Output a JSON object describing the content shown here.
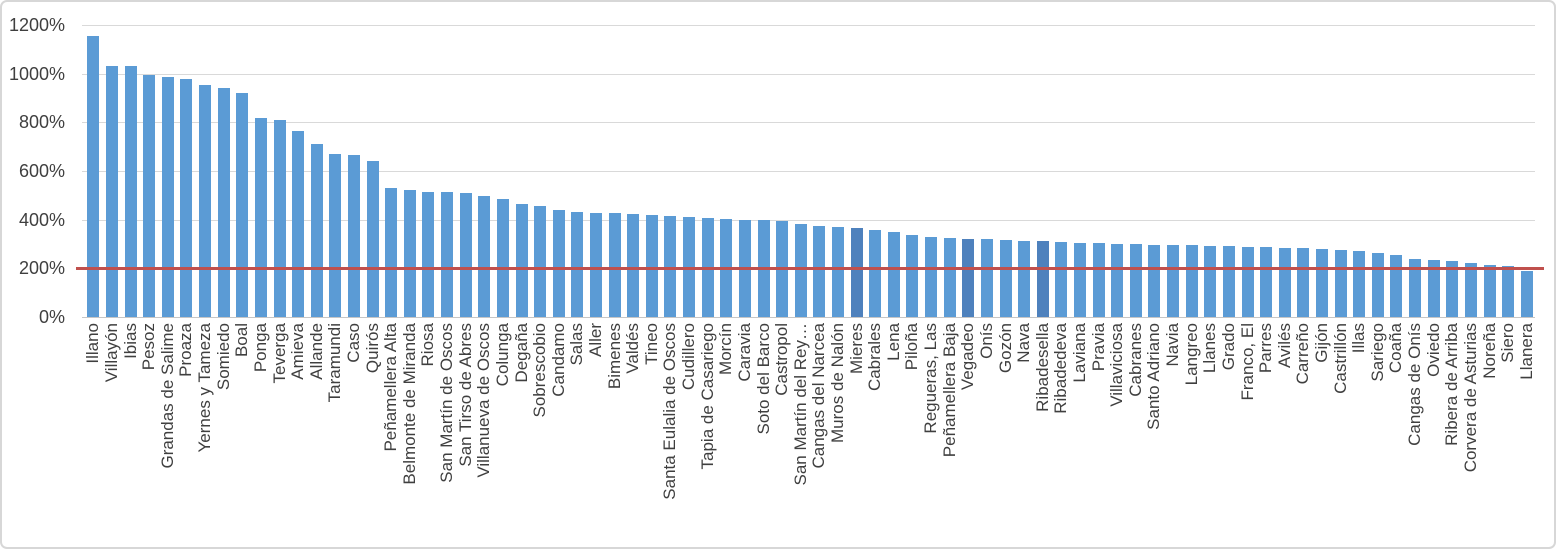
{
  "chart_data": {
    "type": "bar",
    "title": "",
    "xlabel": "",
    "ylabel": "",
    "ylim": [
      0,
      1200
    ],
    "grid": true,
    "legend": false,
    "y_tick_values": [
      0,
      200,
      400,
      600,
      800,
      1000,
      1200
    ],
    "y_tick_labels": [
      "0%",
      "200%",
      "400%",
      "600%",
      "800%",
      "1000%",
      "1200%"
    ],
    "categories": [
      "Illano",
      "Villayón",
      "Ibias",
      "Pesoz",
      "Grandas de Salime",
      "Proaza",
      "Yernes y Tameza",
      "Somiedo",
      "Boal",
      "Ponga",
      "Teverga",
      "Amieva",
      "Allande",
      "Taramundi",
      "Caso",
      "Quirós",
      "Peñamellera Alta",
      "Belmonte de Miranda",
      "Riosa",
      "San Martín de Oscos",
      "San Tirso de Abres",
      "Villanueva de Oscos",
      "Colunga",
      "Degaña",
      "Sobrescobio",
      "Candamo",
      "Salas",
      "Aller",
      "Bimenes",
      "Valdés",
      "Tineo",
      "Santa Eulalia de Oscos",
      "Cudillero",
      "Tapia de Casariego",
      "Morcín",
      "Caravia",
      "Soto del Barco",
      "Castropol",
      "San Martín del Rey…",
      "Cangas del Narcea",
      "Muros de Nalón",
      "Mieres",
      "Cabrales",
      "Lena",
      "Piloña",
      "Regueras, Las",
      "Peñamellera Baja",
      "Vegadeo",
      "Onís",
      "Gozón",
      "Nava",
      "Ribadesella",
      "Ribadedeva",
      "Laviana",
      "Pravia",
      "Villaviciosa",
      "Cabranes",
      "Santo Adriano",
      "Navia",
      "Langreo",
      "Llanes",
      "Grado",
      "Franco, El",
      "Parres",
      "Avilés",
      "Carreño",
      "Gijón",
      "Castrillón",
      "Illas",
      "Sariego",
      "Coaña",
      "Cangas de Onís",
      "Oviedo",
      "Ribera de Arriba",
      "Corvera de Asturias",
      "Noreña",
      "Siero",
      "Llanera"
    ],
    "values": [
      1155,
      1030,
      1030,
      995,
      985,
      980,
      955,
      940,
      920,
      820,
      810,
      765,
      710,
      670,
      665,
      640,
      530,
      522,
      515,
      512,
      510,
      497,
      485,
      465,
      456,
      440,
      432,
      428,
      427,
      423,
      419,
      415,
      411,
      407,
      403,
      400,
      399,
      395,
      383,
      374,
      370,
      366,
      357,
      349,
      337,
      329,
      324,
      321,
      319,
      316,
      312,
      311,
      308,
      305,
      304,
      300,
      299,
      296,
      295,
      295,
      293,
      290,
      289,
      286,
      285,
      284,
      278,
      274,
      270,
      264,
      256,
      238,
      233,
      229,
      222,
      212,
      210,
      188
    ],
    "bar_color": "#5B9BD5",
    "bar_color_highlight": "#4E81BD",
    "highlight_indices": [
      41,
      47,
      51
    ],
    "reference_line": {
      "value": 200,
      "color": "#C0504D"
    },
    "grid_color": "#D9D9D9",
    "background_color": "#FFFFFF",
    "legend_position": "none"
  }
}
